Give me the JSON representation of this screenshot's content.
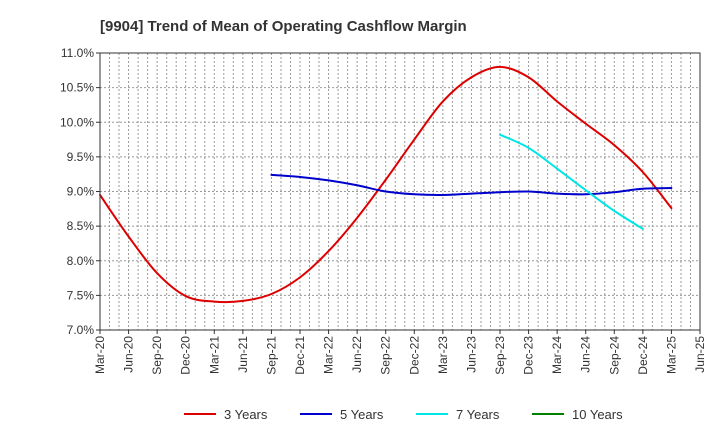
{
  "chart_data": {
    "type": "line",
    "title": "[9904]  Trend of Mean of Operating Cashflow Margin",
    "xlabel": "",
    "ylabel": "",
    "grid": true,
    "legend_position": "bottom",
    "x_ticks": [
      "Mar-20",
      "Jun-20",
      "Sep-20",
      "Dec-20",
      "Mar-21",
      "Jun-21",
      "Sep-21",
      "Dec-21",
      "Mar-22",
      "Jun-22",
      "Sep-22",
      "Dec-22",
      "Mar-23",
      "Jun-23",
      "Sep-23",
      "Dec-23",
      "Mar-24",
      "Jun-24",
      "Sep-24",
      "Dec-24",
      "Mar-25",
      "Jun-25"
    ],
    "y_ticks": [
      "7.0%",
      "7.5%",
      "8.0%",
      "8.5%",
      "9.0%",
      "9.5%",
      "10.0%",
      "10.5%",
      "11.0%"
    ],
    "ylim": [
      7.0,
      11.0
    ],
    "series": [
      {
        "name": "3 Years",
        "color": "#dd0000",
        "points": [
          [
            "Mar-20",
            8.95
          ],
          [
            "Jun-20",
            8.35
          ],
          [
            "Sep-20",
            7.82
          ],
          [
            "Dec-20",
            7.49
          ],
          [
            "Mar-21",
            7.41
          ],
          [
            "Jun-21",
            7.42
          ],
          [
            "Sep-21",
            7.52
          ],
          [
            "Dec-21",
            7.76
          ],
          [
            "Mar-22",
            8.14
          ],
          [
            "Jun-22",
            8.62
          ],
          [
            "Sep-22",
            9.17
          ],
          [
            "Dec-22",
            9.75
          ],
          [
            "Mar-23",
            10.3
          ],
          [
            "Jun-23",
            10.65
          ],
          [
            "Sep-23",
            10.8
          ],
          [
            "Dec-23",
            10.65
          ],
          [
            "Mar-24",
            10.3
          ],
          [
            "Jun-24",
            9.98
          ],
          [
            "Sep-24",
            9.67
          ],
          [
            "Dec-24",
            9.28
          ],
          [
            "Mar-25",
            8.76
          ]
        ]
      },
      {
        "name": "5 Years",
        "color": "#0000cc",
        "points": [
          [
            "Sep-21",
            9.24
          ],
          [
            "Dec-21",
            9.21
          ],
          [
            "Mar-22",
            9.16
          ],
          [
            "Jun-22",
            9.09
          ],
          [
            "Sep-22",
            9.0
          ],
          [
            "Dec-22",
            8.96
          ],
          [
            "Mar-23",
            8.95
          ],
          [
            "Jun-23",
            8.97
          ],
          [
            "Sep-23",
            8.99
          ],
          [
            "Dec-23",
            9.0
          ],
          [
            "Mar-24",
            8.97
          ],
          [
            "Jun-24",
            8.96
          ],
          [
            "Sep-24",
            8.99
          ],
          [
            "Dec-24",
            9.04
          ],
          [
            "Mar-25",
            9.05
          ]
        ]
      },
      {
        "name": "7 Years",
        "color": "#00e5e5",
        "points": [
          [
            "Sep-23",
            9.82
          ],
          [
            "Dec-23",
            9.63
          ],
          [
            "Mar-24",
            9.33
          ],
          [
            "Jun-24",
            9.02
          ],
          [
            "Sep-24",
            8.72
          ],
          [
            "Dec-24",
            8.46
          ]
        ]
      },
      {
        "name": "10 Years",
        "color": "#008000",
        "points": []
      }
    ]
  }
}
